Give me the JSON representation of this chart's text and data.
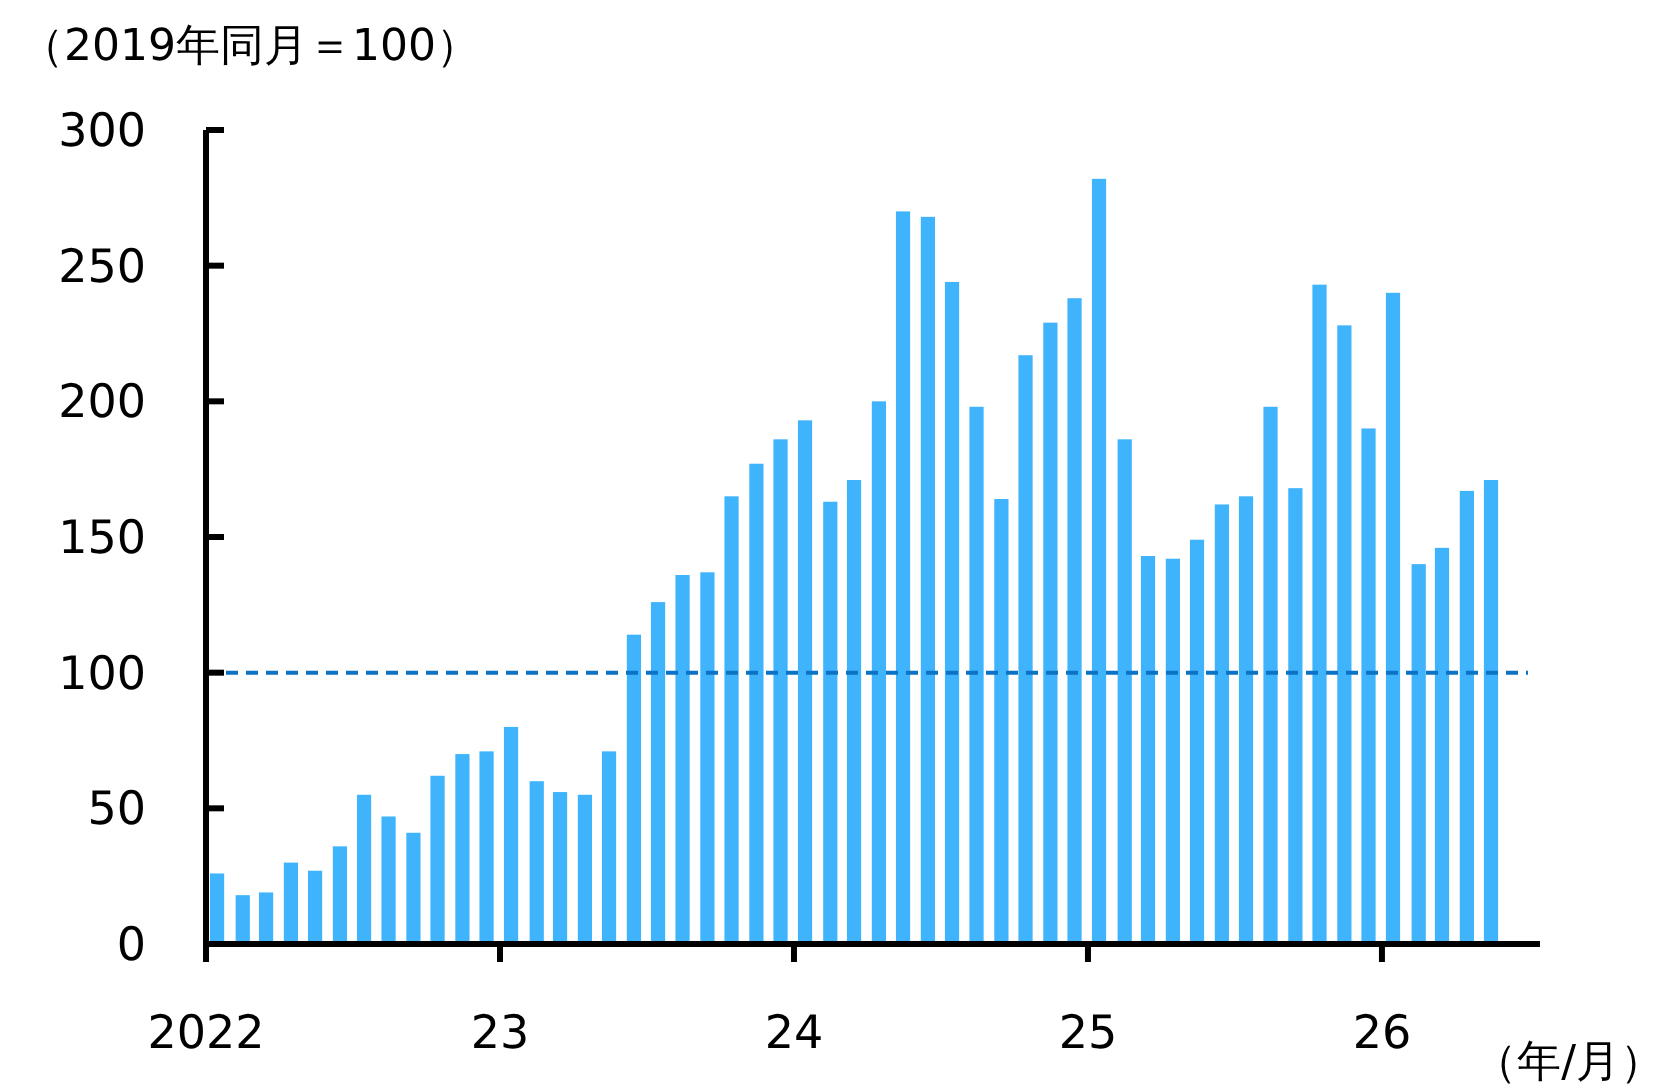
{
  "chart_data": {
    "type": "bar",
    "ylabel": "（2019年同月＝100）",
    "xlabel": "（年/月）",
    "x": [
      "2022-01-15",
      "2022-02-15",
      "2022-03-15",
      "2022-04-15",
      "2022-05-15",
      "2022-06-15",
      "2022-07-15",
      "2022-08-15",
      "2022-09-15",
      "2022-10-15",
      "2022-11-15",
      "2022-12-15",
      "2023-01-15",
      "2023-02-15",
      "2023-03-15",
      "2023-04-15",
      "2023-05-15",
      "2023-06-15",
      "2023-07-15",
      "2023-08-15",
      "2023-09-15",
      "2023-10-15",
      "2023-11-15",
      "2023-12-15",
      "2024-01-15",
      "2024-02-15",
      "2024-03-15",
      "2024-04-15",
      "2024-05-15",
      "2024-06-15",
      "2024-07-15",
      "2024-08-15",
      "2024-09-15",
      "2024-10-15",
      "2024-11-15",
      "2024-12-15",
      "2025-01-15",
      "2025-02-15",
      "2025-03-15",
      "2025-04-15",
      "2025-05-15",
      "2025-06-15",
      "2025-07-15",
      "2025-08-15",
      "2025-09-15",
      "2025-10-15",
      "2025-11-15",
      "2025-12-15",
      "2026-01-15",
      "2026-02-15",
      "2026-03-15",
      "2026-04-15",
      "2026-05-15"
    ],
    "values": [
      26,
      18,
      19,
      30,
      27,
      36,
      55,
      47,
      41,
      62,
      70,
      71,
      80,
      60,
      56,
      55,
      71,
      114,
      126,
      136,
      137,
      165,
      177,
      186,
      193,
      163,
      171,
      200,
      270,
      268,
      244,
      198,
      164,
      217,
      229,
      238,
      282,
      186,
      143,
      142,
      149,
      162,
      165,
      198,
      168,
      243,
      228,
      190,
      240,
      140,
      146,
      167,
      171
    ],
    "color": "#3fb4fc",
    "xlim": [
      "2022-01",
      "2026-07-15"
    ],
    "xticks": [
      {
        "value": "2022-01",
        "label": "2022"
      },
      {
        "value": "2023-01",
        "label": "23"
      },
      {
        "value": "2024-01",
        "label": "24"
      },
      {
        "value": "2025-01",
        "label": "25"
      },
      {
        "value": "2026-01",
        "label": "26"
      }
    ],
    "ylim": [
      0,
      300
    ],
    "yticks": [
      0,
      50,
      100,
      150,
      200,
      250,
      300
    ],
    "ref_lines": [
      {
        "axis": "y",
        "value": 100,
        "label": null,
        "color": "#0b72c4",
        "line_style": "dashed"
      }
    ]
  }
}
